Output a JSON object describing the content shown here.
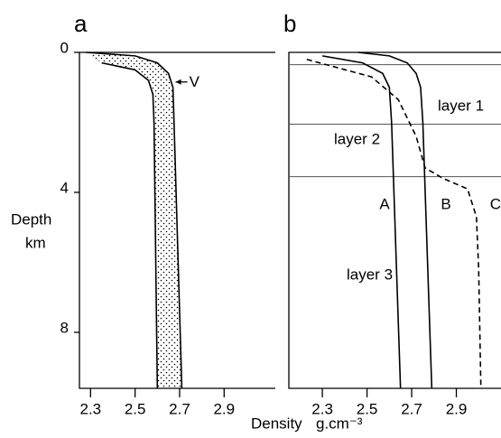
{
  "axis_labels": {
    "x": "Density",
    "x_unit": "g.cm⁻³",
    "y": "Depth",
    "y_unit": "km"
  },
  "chart_data": [
    {
      "type": "line",
      "title": "a",
      "xlim": [
        2.25,
        3.13
      ],
      "ylim": [
        0,
        9.6
      ],
      "xticks": [
        2.3,
        2.5,
        2.7,
        2.9
      ],
      "yticks": [
        0,
        4,
        8
      ],
      "y_inverted": true,
      "shade_between": true,
      "annotation": "V",
      "series": [
        {
          "color": "#000",
          "x": [
            2.35,
            2.5,
            2.56,
            2.58,
            2.585,
            2.6
          ],
          "y": [
            0.3,
            0.5,
            0.8,
            1.2,
            2,
            9.6
          ]
        },
        {
          "color": "#000",
          "x": [
            2.28,
            2.5,
            2.6,
            2.65,
            2.67,
            2.675,
            2.71
          ],
          "y": [
            0,
            0.1,
            0.3,
            0.6,
            1,
            2,
            9.6
          ]
        }
      ]
    },
    {
      "type": "line",
      "title": "b",
      "xlim": [
        2.15,
        3.1
      ],
      "ylim": [
        0,
        9.6
      ],
      "xticks": [
        2.3,
        2.5,
        2.7,
        2.9
      ],
      "y_inverted": true,
      "layer_boundaries": [
        0.35,
        2.05,
        3.55
      ],
      "layers": [
        "layer 1",
        "layer 2",
        "layer 3"
      ],
      "series": [
        {
          "name": "A",
          "color": "#000",
          "x": [
            2.3,
            2.48,
            2.57,
            2.6,
            2.61,
            2.65
          ],
          "y": [
            0.1,
            0.3,
            0.6,
            1,
            2,
            9.6
          ]
        },
        {
          "name": "B",
          "color": "#000",
          "x": [
            2.46,
            2.6,
            2.68,
            2.72,
            2.74,
            2.75,
            2.79
          ],
          "y": [
            0,
            0.1,
            0.3,
            0.6,
            1,
            2,
            9.6
          ]
        },
        {
          "name": "C",
          "color": "#000",
          "dashed": true,
          "x": [
            2.23,
            2.52,
            2.64,
            2.72,
            2.76,
            2.84,
            2.95,
            2.99,
            3.0,
            3.01
          ],
          "y": [
            0.2,
            0.7,
            1.35,
            2.4,
            3.3,
            3.6,
            3.9,
            4.7,
            6.2,
            9.6
          ]
        }
      ]
    }
  ]
}
